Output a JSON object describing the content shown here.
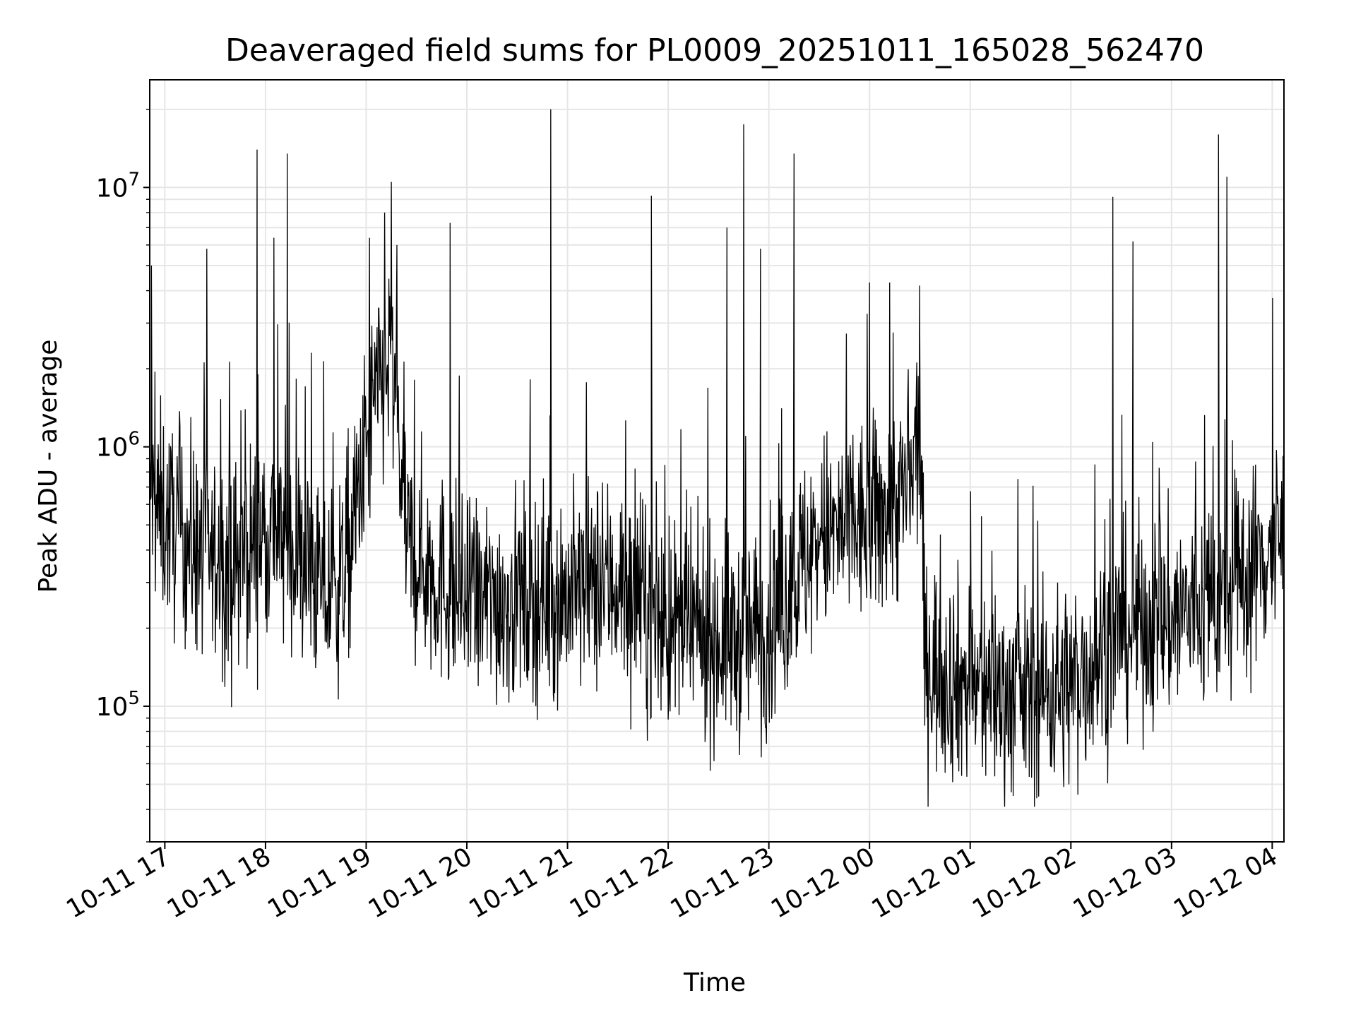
{
  "chart_data": {
    "type": "line",
    "title": "Deaveraged field sums for PL0009_20251011_165028_562470",
    "xlabel": "Time",
    "ylabel": "Peak ADU - average",
    "yscale": "log",
    "ylim": [
      30000,
      26000000
    ],
    "xlim": [
      "2025-10-11 16:51",
      "2025-10-12 04:07"
    ],
    "grid": true,
    "x_ticks": [
      "10-11 17",
      "10-11 18",
      "10-11 19",
      "10-11 20",
      "10-11 21",
      "10-11 22",
      "10-11 23",
      "10-12 00",
      "10-12 01",
      "10-12 02",
      "10-12 03",
      "10-12 04"
    ],
    "y_ticks": [
      {
        "base": "10",
        "exp": "5",
        "value": 100000
      },
      {
        "base": "10",
        "exp": "6",
        "value": 1000000
      },
      {
        "base": "10",
        "exp": "7",
        "value": 10000000
      }
    ],
    "line_color": "#000000",
    "series": [
      {
        "x_start": "2025-10-11 16:51",
        "x_end": "2025-10-12 04:07",
        "profile": [
          {
            "t": "2025-10-11 16:51",
            "median": 600000
          },
          {
            "t": "2025-10-11 17:20",
            "median": 400000
          },
          {
            "t": "2025-10-11 17:40",
            "median": 330000
          },
          {
            "t": "2025-10-11 18:00",
            "median": 500000
          },
          {
            "t": "2025-10-11 18:20",
            "median": 380000
          },
          {
            "t": "2025-10-11 18:40",
            "median": 250000
          },
          {
            "t": "2025-10-11 18:50",
            "median": 400000
          },
          {
            "t": "2025-10-11 19:05",
            "median": 1500000
          },
          {
            "t": "2025-10-11 19:15",
            "median": 2200000
          },
          {
            "t": "2025-10-11 19:25",
            "median": 400000
          },
          {
            "t": "2025-10-11 20:00",
            "median": 250000
          },
          {
            "t": "2025-10-11 21:00",
            "median": 270000
          },
          {
            "t": "2025-10-11 21:30",
            "median": 300000
          },
          {
            "t": "2025-10-11 22:00",
            "median": 200000
          },
          {
            "t": "2025-10-11 22:40",
            "median": 180000
          },
          {
            "t": "2025-10-11 23:00",
            "median": 200000
          },
          {
            "t": "2025-10-11 23:30",
            "median": 450000
          },
          {
            "t": "2025-10-12 00:00",
            "median": 500000
          },
          {
            "t": "2025-10-12 00:25",
            "median": 700000
          },
          {
            "t": "2025-10-12 00:30",
            "median": 1300000
          },
          {
            "t": "2025-10-12 00:33",
            "median": 150000
          },
          {
            "t": "2025-10-12 01:00",
            "median": 120000
          },
          {
            "t": "2025-10-12 01:30",
            "median": 110000
          },
          {
            "t": "2025-10-12 02:00",
            "median": 120000
          },
          {
            "t": "2025-10-12 02:30",
            "median": 200000
          },
          {
            "t": "2025-10-12 03:00",
            "median": 220000
          },
          {
            "t": "2025-10-12 03:30",
            "median": 260000
          },
          {
            "t": "2025-10-12 04:07",
            "median": 450000
          }
        ],
        "spikes": [
          {
            "t": "2025-10-11 16:52",
            "value": 5000000
          },
          {
            "t": "2025-10-11 17:25",
            "value": 5800000
          },
          {
            "t": "2025-10-11 17:55",
            "value": 14000000
          },
          {
            "t": "2025-10-11 18:05",
            "value": 6400000
          },
          {
            "t": "2025-10-11 18:13",
            "value": 13500000
          },
          {
            "t": "2025-10-11 19:02",
            "value": 6400000
          },
          {
            "t": "2025-10-11 19:11",
            "value": 8000000
          },
          {
            "t": "2025-10-11 19:15",
            "value": 10500000
          },
          {
            "t": "2025-10-11 19:50",
            "value": 7300000
          },
          {
            "t": "2025-10-11 20:50",
            "value": 20000000
          },
          {
            "t": "2025-10-11 21:50",
            "value": 9300000
          },
          {
            "t": "2025-10-11 22:35",
            "value": 7000000
          },
          {
            "t": "2025-10-11 22:45",
            "value": 17500000
          },
          {
            "t": "2025-10-11 22:55",
            "value": 5800000
          },
          {
            "t": "2025-10-11 23:15",
            "value": 13500000
          },
          {
            "t": "2025-10-12 00:00",
            "value": 4300000
          },
          {
            "t": "2025-10-12 00:12",
            "value": 4300000
          },
          {
            "t": "2025-10-12 02:25",
            "value": 9200000
          },
          {
            "t": "2025-10-12 02:37",
            "value": 6200000
          },
          {
            "t": "2025-10-12 03:28",
            "value": 16000000
          },
          {
            "t": "2025-10-12 03:33",
            "value": 11000000
          }
        ]
      }
    ]
  }
}
